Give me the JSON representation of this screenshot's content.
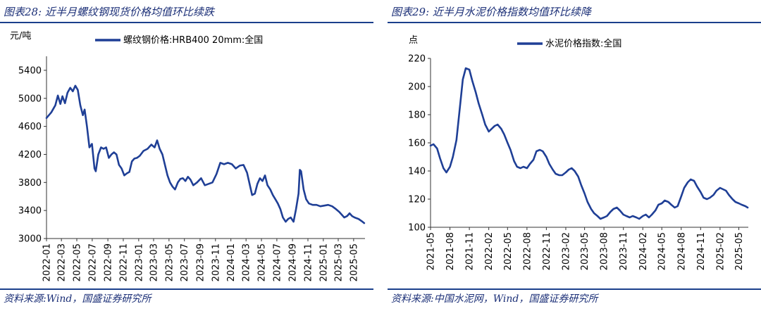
{
  "panels": [
    {
      "figure_title": "图表28:  近半月螺纹钢现货价格均值环比续跌",
      "source": "资料来源:Wind，国盛证券研究所"
    },
    {
      "figure_title": "图表29:  近半月水泥价格指数均值环比续降",
      "source": "资料来源:中国水泥网，Wind，国盛证券研究所"
    }
  ],
  "chart_data": [
    {
      "type": "line",
      "title": "",
      "ylabel": "元/吨",
      "xlabel": "",
      "ylim": [
        3000,
        5600
      ],
      "yticks": [
        3000,
        3400,
        3800,
        4200,
        4600,
        5000,
        5400
      ],
      "xlim": [
        "2022-01-01",
        "2025-06-15"
      ],
      "xticks": [
        "2022-01",
        "2022-03",
        "2022-05",
        "2022-07",
        "2022-09",
        "2022-11",
        "2023-01",
        "2023-03",
        "2023-05",
        "2023-07",
        "2023-09",
        "2023-11",
        "2024-01",
        "2024-03",
        "2024-05",
        "2024-07",
        "2024-09",
        "2024-11",
        "2025-01",
        "2025-03",
        "2025-05"
      ],
      "grid": false,
      "legend": "top",
      "color": "#1f3f96",
      "series": [
        {
          "name": "螺纹钢价格:HRB400 20mm:全国",
          "points": [
            [
              "2022-01-01",
              4720
            ],
            [
              "2022-01-20",
              4800
            ],
            [
              "2022-02-05",
              4900
            ],
            [
              "2022-02-15",
              5040
            ],
            [
              "2022-02-25",
              4920
            ],
            [
              "2022-03-05",
              5030
            ],
            [
              "2022-03-15",
              4930
            ],
            [
              "2022-03-25",
              5080
            ],
            [
              "2022-04-05",
              5150
            ],
            [
              "2022-04-15",
              5100
            ],
            [
              "2022-04-25",
              5180
            ],
            [
              "2022-05-05",
              5120
            ],
            [
              "2022-05-15",
              4900
            ],
            [
              "2022-05-25",
              4760
            ],
            [
              "2022-06-01",
              4840
            ],
            [
              "2022-06-10",
              4600
            ],
            [
              "2022-06-20",
              4300
            ],
            [
              "2022-06-30",
              4350
            ],
            [
              "2022-07-10",
              4000
            ],
            [
              "2022-07-15",
              3960
            ],
            [
              "2022-07-25",
              4200
            ],
            [
              "2022-08-05",
              4300
            ],
            [
              "2022-08-15",
              4280
            ],
            [
              "2022-08-25",
              4300
            ],
            [
              "2022-09-05",
              4150
            ],
            [
              "2022-09-15",
              4200
            ],
            [
              "2022-09-25",
              4230
            ],
            [
              "2022-10-05",
              4200
            ],
            [
              "2022-10-15",
              4050
            ],
            [
              "2022-10-25",
              4000
            ],
            [
              "2022-11-05",
              3900
            ],
            [
              "2022-11-15",
              3930
            ],
            [
              "2022-11-25",
              3950
            ],
            [
              "2022-12-05",
              4100
            ],
            [
              "2022-12-15",
              4140
            ],
            [
              "2022-12-25",
              4150
            ],
            [
              "2023-01-05",
              4180
            ],
            [
              "2023-01-20",
              4250
            ],
            [
              "2023-02-05",
              4280
            ],
            [
              "2023-02-20",
              4340
            ],
            [
              "2023-03-05",
              4300
            ],
            [
              "2023-03-15",
              4400
            ],
            [
              "2023-03-25",
              4280
            ],
            [
              "2023-04-05",
              4200
            ],
            [
              "2023-04-15",
              4050
            ],
            [
              "2023-04-25",
              3900
            ],
            [
              "2023-05-05",
              3800
            ],
            [
              "2023-05-15",
              3740
            ],
            [
              "2023-05-25",
              3700
            ],
            [
              "2023-06-05",
              3800
            ],
            [
              "2023-06-15",
              3850
            ],
            [
              "2023-06-25",
              3860
            ],
            [
              "2023-07-05",
              3820
            ],
            [
              "2023-07-15",
              3880
            ],
            [
              "2023-07-25",
              3840
            ],
            [
              "2023-08-05",
              3760
            ],
            [
              "2023-08-20",
              3800
            ],
            [
              "2023-09-05",
              3860
            ],
            [
              "2023-09-20",
              3760
            ],
            [
              "2023-10-05",
              3780
            ],
            [
              "2023-10-20",
              3800
            ],
            [
              "2023-11-05",
              3920
            ],
            [
              "2023-11-20",
              4080
            ],
            [
              "2023-12-05",
              4060
            ],
            [
              "2023-12-20",
              4080
            ],
            [
              "2024-01-05",
              4060
            ],
            [
              "2024-01-20",
              4000
            ],
            [
              "2024-02-05",
              4040
            ],
            [
              "2024-02-20",
              4050
            ],
            [
              "2024-03-05",
              3940
            ],
            [
              "2024-03-15",
              3780
            ],
            [
              "2024-03-25",
              3620
            ],
            [
              "2024-04-05",
              3640
            ],
            [
              "2024-04-15",
              3780
            ],
            [
              "2024-04-25",
              3860
            ],
            [
              "2024-05-05",
              3820
            ],
            [
              "2024-05-15",
              3900
            ],
            [
              "2024-05-25",
              3760
            ],
            [
              "2024-06-05",
              3700
            ],
            [
              "2024-06-15",
              3620
            ],
            [
              "2024-06-25",
              3560
            ],
            [
              "2024-07-05",
              3500
            ],
            [
              "2024-07-15",
              3420
            ],
            [
              "2024-07-25",
              3300
            ],
            [
              "2024-08-05",
              3240
            ],
            [
              "2024-08-15",
              3280
            ],
            [
              "2024-08-25",
              3300
            ],
            [
              "2024-09-05",
              3240
            ],
            [
              "2024-09-15",
              3420
            ],
            [
              "2024-09-25",
              3640
            ],
            [
              "2024-09-30",
              3980
            ],
            [
              "2024-10-05",
              3960
            ],
            [
              "2024-10-15",
              3700
            ],
            [
              "2024-10-25",
              3560
            ],
            [
              "2024-11-05",
              3500
            ],
            [
              "2024-11-20",
              3480
            ],
            [
              "2024-12-05",
              3480
            ],
            [
              "2024-12-20",
              3460
            ],
            [
              "2025-01-05",
              3470
            ],
            [
              "2025-01-20",
              3480
            ],
            [
              "2025-02-05",
              3460
            ],
            [
              "2025-02-20",
              3420
            ],
            [
              "2025-03-05",
              3380
            ],
            [
              "2025-03-15",
              3340
            ],
            [
              "2025-03-25",
              3300
            ],
            [
              "2025-04-05",
              3320
            ],
            [
              "2025-04-15",
              3360
            ],
            [
              "2025-04-25",
              3320
            ],
            [
              "2025-05-05",
              3300
            ],
            [
              "2025-05-20",
              3280
            ],
            [
              "2025-06-05",
              3240
            ],
            [
              "2025-06-12",
              3220
            ]
          ]
        }
      ]
    },
    {
      "type": "line",
      "title": "",
      "ylabel": "点",
      "xlabel": "",
      "ylim": [
        100,
        220
      ],
      "yticks": [
        100,
        120,
        140,
        160,
        180,
        200,
        220
      ],
      "xlim": [
        "2021-05-01",
        "2025-06-15"
      ],
      "xticks": [
        "2021-05",
        "2021-08",
        "2021-11",
        "2022-02",
        "2022-05",
        "2022-08",
        "2022-11",
        "2023-02",
        "2023-05",
        "2023-08",
        "2023-11",
        "2024-02",
        "2024-05",
        "2024-08",
        "2024-11",
        "2025-02",
        "2025-05"
      ],
      "grid": false,
      "legend": "top",
      "color": "#1f3f96",
      "series": [
        {
          "name": "水泥价格指数:全国",
          "points": [
            [
              "2021-05-01",
              158
            ],
            [
              "2021-05-15",
              159
            ],
            [
              "2021-06-01",
              156
            ],
            [
              "2021-06-15",
              149
            ],
            [
              "2021-07-01",
              142
            ],
            [
              "2021-07-15",
              139
            ],
            [
              "2021-08-01",
              143
            ],
            [
              "2021-08-15",
              150
            ],
            [
              "2021-09-01",
              162
            ],
            [
              "2021-09-15",
              182
            ],
            [
              "2021-10-01",
              205
            ],
            [
              "2021-10-15",
              213
            ],
            [
              "2021-11-01",
              212
            ],
            [
              "2021-11-15",
              204
            ],
            [
              "2021-12-01",
              196
            ],
            [
              "2021-12-15",
              188
            ],
            [
              "2022-01-01",
              180
            ],
            [
              "2022-01-15",
              173
            ],
            [
              "2022-02-01",
              168
            ],
            [
              "2022-02-15",
              170
            ],
            [
              "2022-03-01",
              172
            ],
            [
              "2022-03-15",
              173
            ],
            [
              "2022-04-01",
              170
            ],
            [
              "2022-04-15",
              166
            ],
            [
              "2022-05-01",
              160
            ],
            [
              "2022-05-15",
              155
            ],
            [
              "2022-06-01",
              147
            ],
            [
              "2022-06-15",
              143
            ],
            [
              "2022-07-01",
              142
            ],
            [
              "2022-07-15",
              143
            ],
            [
              "2022-08-01",
              142
            ],
            [
              "2022-08-15",
              145
            ],
            [
              "2022-09-01",
              148
            ],
            [
              "2022-09-15",
              154
            ],
            [
              "2022-10-01",
              155
            ],
            [
              "2022-10-15",
              154
            ],
            [
              "2022-11-01",
              150
            ],
            [
              "2022-11-15",
              145
            ],
            [
              "2022-12-01",
              141
            ],
            [
              "2022-12-15",
              138
            ],
            [
              "2023-01-01",
              137
            ],
            [
              "2023-01-15",
              137
            ],
            [
              "2023-02-01",
              139
            ],
            [
              "2023-02-15",
              141
            ],
            [
              "2023-03-01",
              142
            ],
            [
              "2023-03-15",
              140
            ],
            [
              "2023-04-01",
              136
            ],
            [
              "2023-04-15",
              130
            ],
            [
              "2023-05-01",
              124
            ],
            [
              "2023-05-15",
              118
            ],
            [
              "2023-06-01",
              113
            ],
            [
              "2023-06-15",
              110
            ],
            [
              "2023-07-01",
              108
            ],
            [
              "2023-07-15",
              106
            ],
            [
              "2023-08-01",
              107
            ],
            [
              "2023-08-15",
              108
            ],
            [
              "2023-09-01",
              111
            ],
            [
              "2023-09-15",
              113
            ],
            [
              "2023-10-01",
              114
            ],
            [
              "2023-10-15",
              112
            ],
            [
              "2023-11-01",
              109
            ],
            [
              "2023-11-15",
              108
            ],
            [
              "2023-12-01",
              107
            ],
            [
              "2023-12-15",
              108
            ],
            [
              "2024-01-01",
              107
            ],
            [
              "2024-01-15",
              106
            ],
            [
              "2024-02-01",
              108
            ],
            [
              "2024-02-15",
              109
            ],
            [
              "2024-03-01",
              107
            ],
            [
              "2024-03-15",
              109
            ],
            [
              "2024-04-01",
              112
            ],
            [
              "2024-04-15",
              116
            ],
            [
              "2024-05-01",
              117
            ],
            [
              "2024-05-15",
              119
            ],
            [
              "2024-06-01",
              118
            ],
            [
              "2024-06-15",
              116
            ],
            [
              "2024-07-01",
              114
            ],
            [
              "2024-07-15",
              115
            ],
            [
              "2024-08-01",
              122
            ],
            [
              "2024-08-15",
              128
            ],
            [
              "2024-09-01",
              132
            ],
            [
              "2024-09-15",
              134
            ],
            [
              "2024-10-01",
              133
            ],
            [
              "2024-10-15",
              129
            ],
            [
              "2024-11-01",
              125
            ],
            [
              "2024-11-15",
              121
            ],
            [
              "2024-12-01",
              120
            ],
            [
              "2024-12-15",
              121
            ],
            [
              "2025-01-01",
              123
            ],
            [
              "2025-01-15",
              126
            ],
            [
              "2025-02-01",
              128
            ],
            [
              "2025-02-15",
              127
            ],
            [
              "2025-03-01",
              126
            ],
            [
              "2025-03-15",
              123
            ],
            [
              "2025-04-01",
              120
            ],
            [
              "2025-04-15",
              118
            ],
            [
              "2025-05-01",
              117
            ],
            [
              "2025-05-15",
              116
            ],
            [
              "2025-06-01",
              115
            ],
            [
              "2025-06-12",
              114
            ]
          ]
        }
      ]
    }
  ]
}
